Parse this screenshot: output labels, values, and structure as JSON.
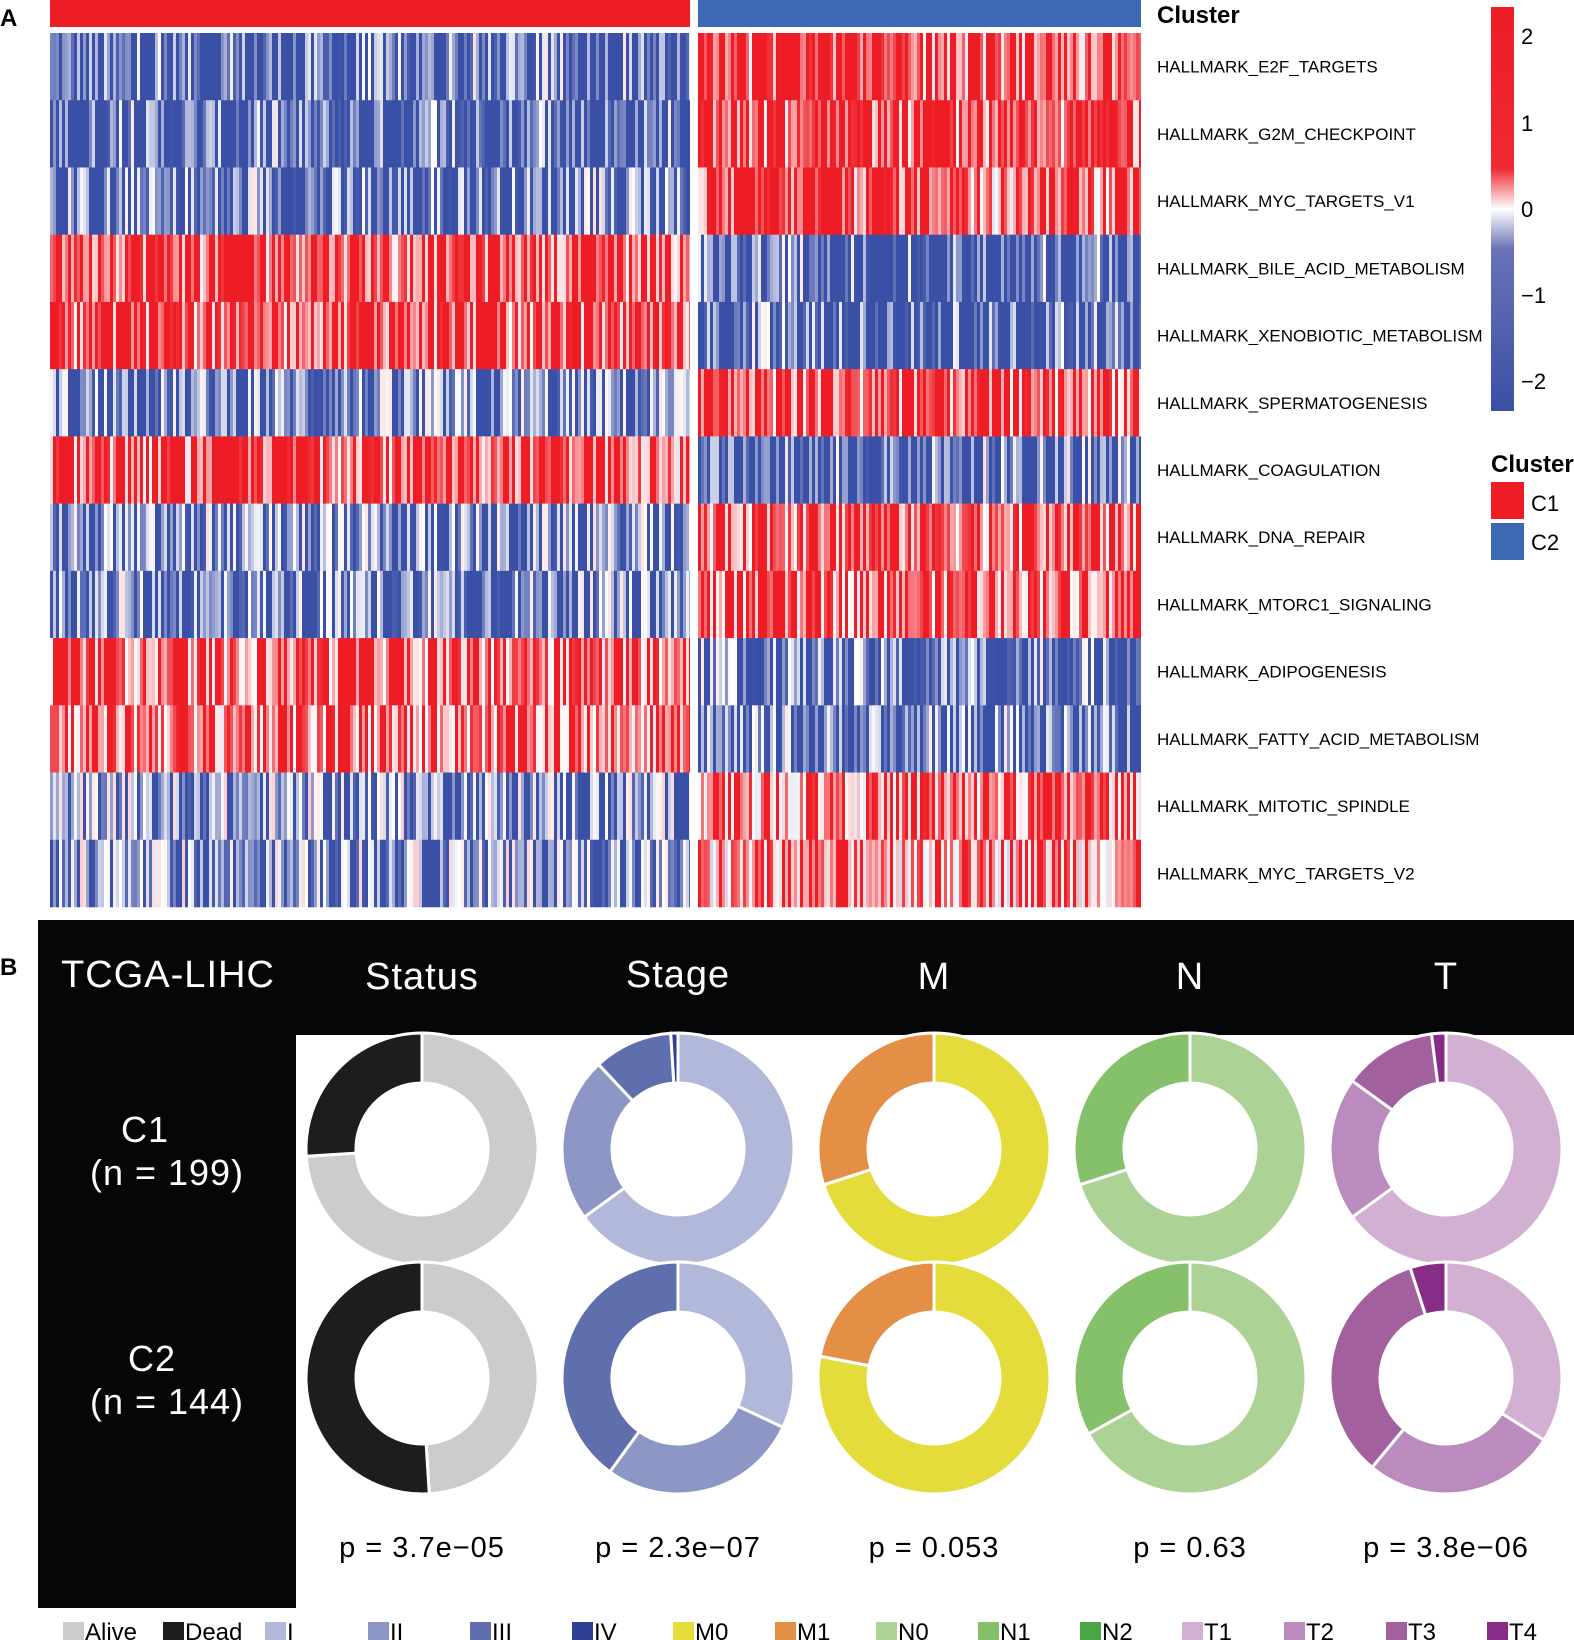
{
  "panel_a": {
    "letter": "A",
    "cluster_title": "Cluster",
    "scale": {
      "ticks": [
        "2",
        "1",
        "0",
        "−1",
        "−2"
      ],
      "low_color": "#3a4fa6",
      "mid_color": "#ffffff",
      "high_color": "#ee1c25"
    },
    "legend": {
      "title": "Cluster",
      "items": [
        {
          "label": "C1",
          "color": "#ee1c25"
        },
        {
          "label": "C2",
          "color": "#3d68b2"
        }
      ]
    }
  },
  "panel_b": {
    "letter": "B",
    "header": {
      "dataset": "TCGA-LIHC",
      "columns": [
        "Status",
        "Stage",
        "M",
        "N",
        "T"
      ]
    },
    "rows": [
      {
        "line1": "C1",
        "line2": "(n = 199)"
      },
      {
        "line1": "C2",
        "line2": "(n = 144)"
      }
    ],
    "pvalues": [
      "p = 3.7e−05",
      "p = 2.3e−07",
      "p = 0.053",
      "p = 0.63",
      "p = 3.8e−06"
    ],
    "legend": [
      {
        "label": "Alive",
        "color": "#cccccc"
      },
      {
        "label": "Dead",
        "color": "#1d1d1b"
      },
      {
        "label": "I",
        "color": "#b2b8d9"
      },
      {
        "label": "II",
        "color": "#8d97c5"
      },
      {
        "label": "III",
        "color": "#5f6fae"
      },
      {
        "label": "IV",
        "color": "#2f3f93"
      },
      {
        "label": "M0",
        "color": "#e4dc3a"
      },
      {
        "label": "M1",
        "color": "#e39046"
      },
      {
        "label": "N0",
        "color": "#acd296"
      },
      {
        "label": "N1",
        "color": "#85c06a"
      },
      {
        "label": "N2",
        "color": "#4aa544"
      },
      {
        "label": "T1",
        "color": "#d2b0d2"
      },
      {
        "label": "T2",
        "color": "#bb8bbe"
      },
      {
        "label": "T3",
        "color": "#a3609f"
      },
      {
        "label": "T4",
        "color": "#872c87"
      }
    ]
  },
  "chart_data": [
    {
      "type": "heatmap",
      "title": "",
      "annotation": "Cluster",
      "columns_groups": [
        {
          "name": "C1",
          "n": 199
        },
        {
          "name": "C2",
          "n": 144
        }
      ],
      "rows": [
        "HALLMARK_E2F_TARGETS",
        "HALLMARK_G2M_CHECKPOINT",
        "HALLMARK_MYC_TARGETS_V1",
        "HALLMARK_BILE_ACID_METABOLISM",
        "HALLMARK_XENOBIOTIC_METABOLISM",
        "HALLMARK_SPERMATOGENESIS",
        "HALLMARK_COAGULATION",
        "HALLMARK_DNA_REPAIR",
        "HALLMARK_MTORC1_SIGNALING",
        "HALLMARK_ADIPOGENESIS",
        "HALLMARK_FATTY_ACID_METABOLISM",
        "HALLMARK_MITOTIC_SPINDLE",
        "HALLMARK_MYC_TARGETS_V2"
      ],
      "mean_z_by_cluster": {
        "C1": [
          -0.8,
          -0.8,
          -0.7,
          0.8,
          0.8,
          -0.6,
          0.8,
          -0.6,
          -0.6,
          0.7,
          0.6,
          -0.5,
          -0.5
        ],
        "C2": [
          0.9,
          0.9,
          0.8,
          -0.9,
          -0.8,
          0.7,
          -0.9,
          0.7,
          0.7,
          -0.7,
          -0.7,
          0.6,
          0.5
        ]
      },
      "value_range": [
        -2,
        2
      ]
    },
    {
      "type": "pie",
      "subtype": "donut",
      "panels": [
        {
          "variable": "Status",
          "categories": [
            "Alive",
            "Dead"
          ],
          "C1": [
            0.74,
            0.26
          ],
          "C2": [
            0.49,
            0.51
          ],
          "p": "3.7e-05"
        },
        {
          "variable": "Stage",
          "categories": [
            "I",
            "II",
            "III",
            "IV"
          ],
          "C1": [
            0.65,
            0.23,
            0.11,
            0.01
          ],
          "C2": [
            0.32,
            0.28,
            0.4,
            0.0
          ],
          "p": "2.3e-07"
        },
        {
          "variable": "M",
          "categories": [
            "M0",
            "M1"
          ],
          "C1": [
            0.7,
            0.3
          ],
          "C2": [
            0.78,
            0.22
          ],
          "p": "0.053"
        },
        {
          "variable": "N",
          "categories": [
            "N0",
            "N1",
            "N2"
          ],
          "C1": [
            0.7,
            0.3,
            0.0
          ],
          "C2": [
            0.67,
            0.33,
            0.0
          ],
          "p": "0.63"
        },
        {
          "variable": "T",
          "categories": [
            "T1",
            "T2",
            "T3",
            "T4"
          ],
          "C1": [
            0.65,
            0.2,
            0.13,
            0.02
          ],
          "C2": [
            0.34,
            0.27,
            0.34,
            0.05
          ],
          "p": "3.8e-06"
        }
      ]
    }
  ]
}
